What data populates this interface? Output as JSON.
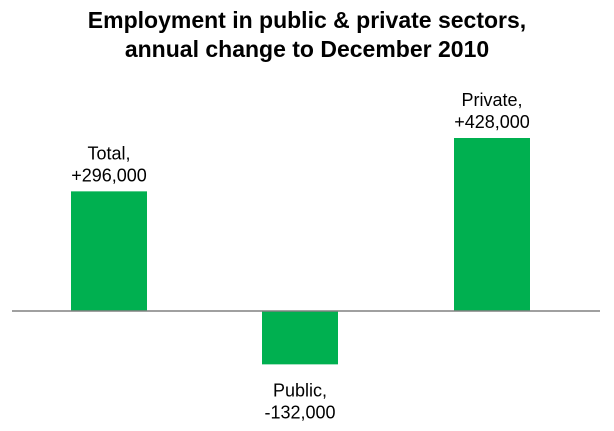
{
  "chart_data": {
    "type": "bar",
    "title_lines": [
      "Employment in public & private sectors,",
      "annual change to December 2010"
    ],
    "xlabel": "",
    "ylabel": "",
    "ylim": [
      -160000,
      500000
    ],
    "grid": false,
    "legend": "none",
    "bar_color": "#00b050",
    "axis_color": "#808080",
    "categories": [
      "Total,",
      "Public,",
      "Private,"
    ],
    "values": [
      296000,
      -132000,
      428000
    ],
    "value_labels": [
      "+296,000",
      "-132,000",
      "+428,000"
    ]
  }
}
